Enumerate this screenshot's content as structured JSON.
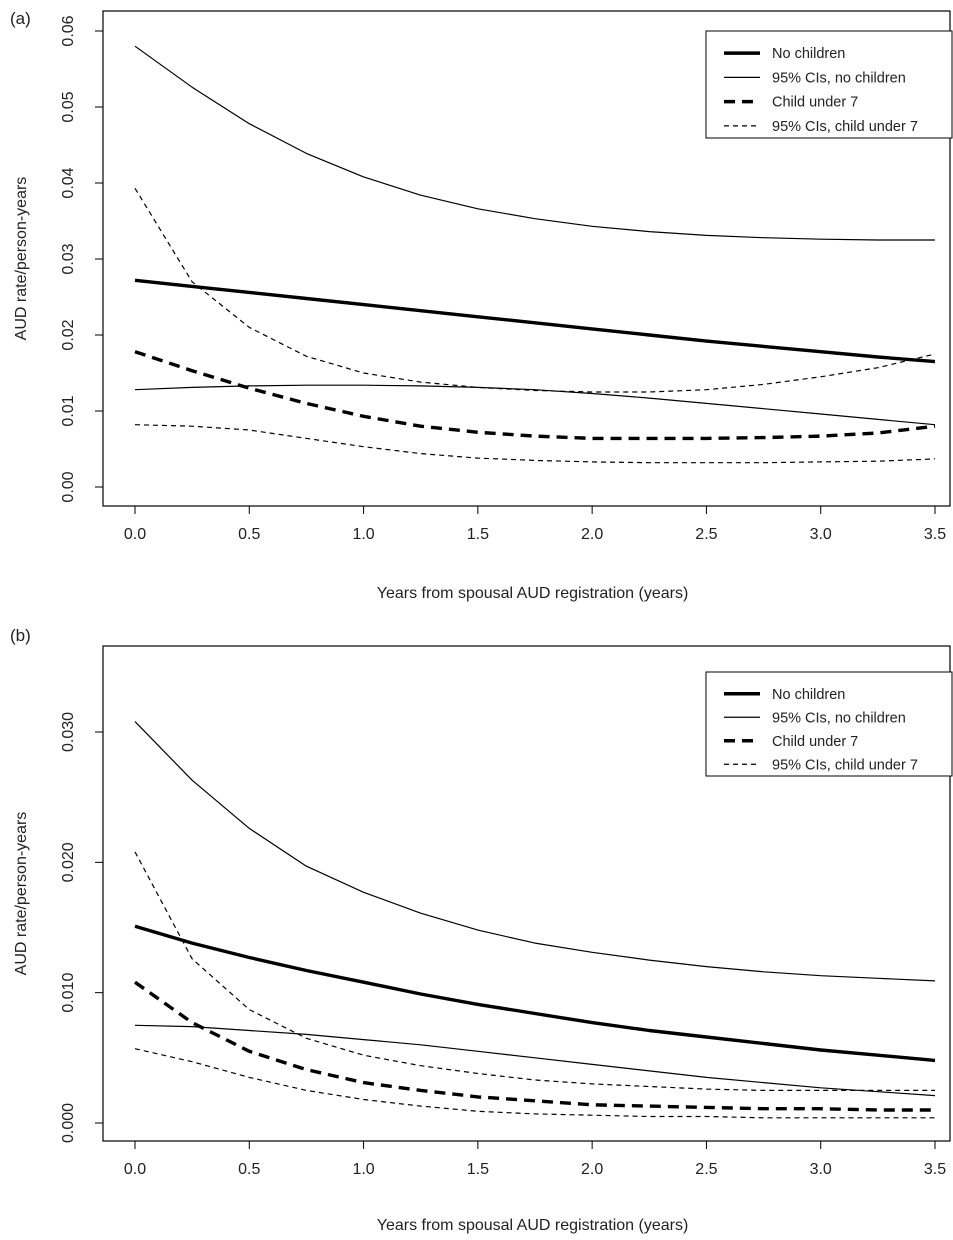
{
  "chart_data": [
    {
      "type": "line",
      "panel_label": "(a)",
      "xlabel": "Years from spousal AUD registration (years)",
      "ylabel": "AUD rate/person-years",
      "xlim": [
        0,
        3.5
      ],
      "ylim": [
        0,
        0.06
      ],
      "x_ticks": [
        "0.0",
        "0.5",
        "1.0",
        "1.5",
        "2.0",
        "2.5",
        "3.0",
        "3.5"
      ],
      "y_ticks": [
        "0.00",
        "0.01",
        "0.02",
        "0.03",
        "0.04",
        "0.05",
        "0.06"
      ],
      "grid": false,
      "legend_position": "top-right",
      "x": [
        0.0,
        0.25,
        0.5,
        0.75,
        1.0,
        1.25,
        1.5,
        1.75,
        2.0,
        2.25,
        2.5,
        2.75,
        3.0,
        3.25,
        3.5
      ],
      "series": [
        {
          "name": "No children",
          "style": "thick-solid",
          "values": [
            0.0272,
            0.0264,
            0.0256,
            0.0248,
            0.024,
            0.0232,
            0.0224,
            0.0216,
            0.0208,
            0.02,
            0.0192,
            0.0185,
            0.0178,
            0.0171,
            0.0165
          ]
        },
        {
          "name": "95% CIs, no children",
          "style": "thin-solid",
          "values": [
            0.058,
            0.0526,
            0.0478,
            0.0439,
            0.0408,
            0.0384,
            0.0366,
            0.0353,
            0.0343,
            0.0336,
            0.0331,
            0.0328,
            0.0326,
            0.0325,
            0.0325
          ]
        },
        {
          "name": "95% CIs, no children",
          "style": "thin-solid",
          "legend": false,
          "values": [
            0.0128,
            0.0131,
            0.0133,
            0.0134,
            0.0134,
            0.0133,
            0.0131,
            0.0128,
            0.0123,
            0.0117,
            0.011,
            0.0103,
            0.0096,
            0.0089,
            0.0082
          ]
        },
        {
          "name": "Child under 7",
          "style": "thick-dashed",
          "values": [
            0.0178,
            0.0153,
            0.013,
            0.011,
            0.0093,
            0.008,
            0.0072,
            0.0067,
            0.0064,
            0.0064,
            0.0064,
            0.0065,
            0.0067,
            0.0071,
            0.008
          ]
        },
        {
          "name": "95% CIs, child under 7",
          "style": "thin-dashed",
          "values": [
            0.0393,
            0.027,
            0.021,
            0.0172,
            0.015,
            0.0138,
            0.0131,
            0.0127,
            0.0125,
            0.0125,
            0.0128,
            0.0135,
            0.0145,
            0.0157,
            0.0175
          ]
        },
        {
          "name": "95% CIs, child under 7",
          "style": "thin-dashed",
          "legend": false,
          "values": [
            0.0082,
            0.008,
            0.0075,
            0.0064,
            0.0053,
            0.0044,
            0.0038,
            0.0035,
            0.0033,
            0.0032,
            0.0032,
            0.0032,
            0.0033,
            0.0034,
            0.0037
          ]
        }
      ]
    },
    {
      "type": "line",
      "panel_label": "(b)",
      "xlabel": "Years from spousal AUD registration (years)",
      "ylabel": "AUD rate/person-years",
      "xlim": [
        0,
        3.5
      ],
      "ylim": [
        0,
        0.035
      ],
      "x_ticks": [
        "0.0",
        "0.5",
        "1.0",
        "1.5",
        "2.0",
        "2.5",
        "3.0",
        "3.5"
      ],
      "y_ticks": [
        "0.000",
        "0.010",
        "0.020",
        "0.030"
      ],
      "grid": false,
      "legend_position": "top-right",
      "x": [
        0.0,
        0.25,
        0.5,
        0.75,
        1.0,
        1.25,
        1.5,
        1.75,
        2.0,
        2.25,
        2.5,
        2.75,
        3.0,
        3.25,
        3.5
      ],
      "series": [
        {
          "name": "No children",
          "style": "thick-solid",
          "values": [
            0.0151,
            0.0138,
            0.0127,
            0.0117,
            0.0108,
            0.0099,
            0.0091,
            0.0084,
            0.0077,
            0.0071,
            0.0066,
            0.0061,
            0.0056,
            0.0052,
            0.0048
          ]
        },
        {
          "name": "95% CIs, no children",
          "style": "thin-solid",
          "values": [
            0.0308,
            0.0263,
            0.0226,
            0.0197,
            0.0177,
            0.0161,
            0.0148,
            0.0138,
            0.0131,
            0.0125,
            0.012,
            0.0116,
            0.0113,
            0.0111,
            0.0109
          ]
        },
        {
          "name": "95% CIs, no children",
          "style": "thin-solid",
          "legend": false,
          "values": [
            0.0075,
            0.0074,
            0.0071,
            0.0068,
            0.0064,
            0.006,
            0.0055,
            0.005,
            0.0045,
            0.004,
            0.0035,
            0.0031,
            0.0027,
            0.0024,
            0.0021
          ]
        },
        {
          "name": "Child under 7",
          "style": "thick-dashed",
          "values": [
            0.0108,
            0.0077,
            0.0055,
            0.0041,
            0.0031,
            0.0025,
            0.002,
            0.0017,
            0.0014,
            0.0013,
            0.0012,
            0.0011,
            0.0011,
            0.001,
            0.001
          ]
        },
        {
          "name": "95% CIs, child under 7",
          "style": "thin-dashed",
          "values": [
            0.0208,
            0.0126,
            0.0087,
            0.0065,
            0.0052,
            0.0044,
            0.0038,
            0.0033,
            0.003,
            0.0028,
            0.0026,
            0.0025,
            0.0025,
            0.0025,
            0.0025
          ]
        },
        {
          "name": "95% CIs, child under 7",
          "style": "thin-dashed",
          "legend": false,
          "values": [
            0.0057,
            0.0047,
            0.0035,
            0.0025,
            0.0018,
            0.0013,
            0.0009,
            0.0007,
            0.0006,
            0.0005,
            0.0005,
            0.0004,
            0.0004,
            0.0004,
            0.0004
          ]
        }
      ]
    }
  ],
  "legend_entries": [
    {
      "label": "No children",
      "style": "thick-solid"
    },
    {
      "label": "95% CIs, no children",
      "style": "thin-solid"
    },
    {
      "label": "Child under 7",
      "style": "thick-dashed"
    },
    {
      "label": "95% CIs, child under 7",
      "style": "thin-dashed"
    }
  ]
}
